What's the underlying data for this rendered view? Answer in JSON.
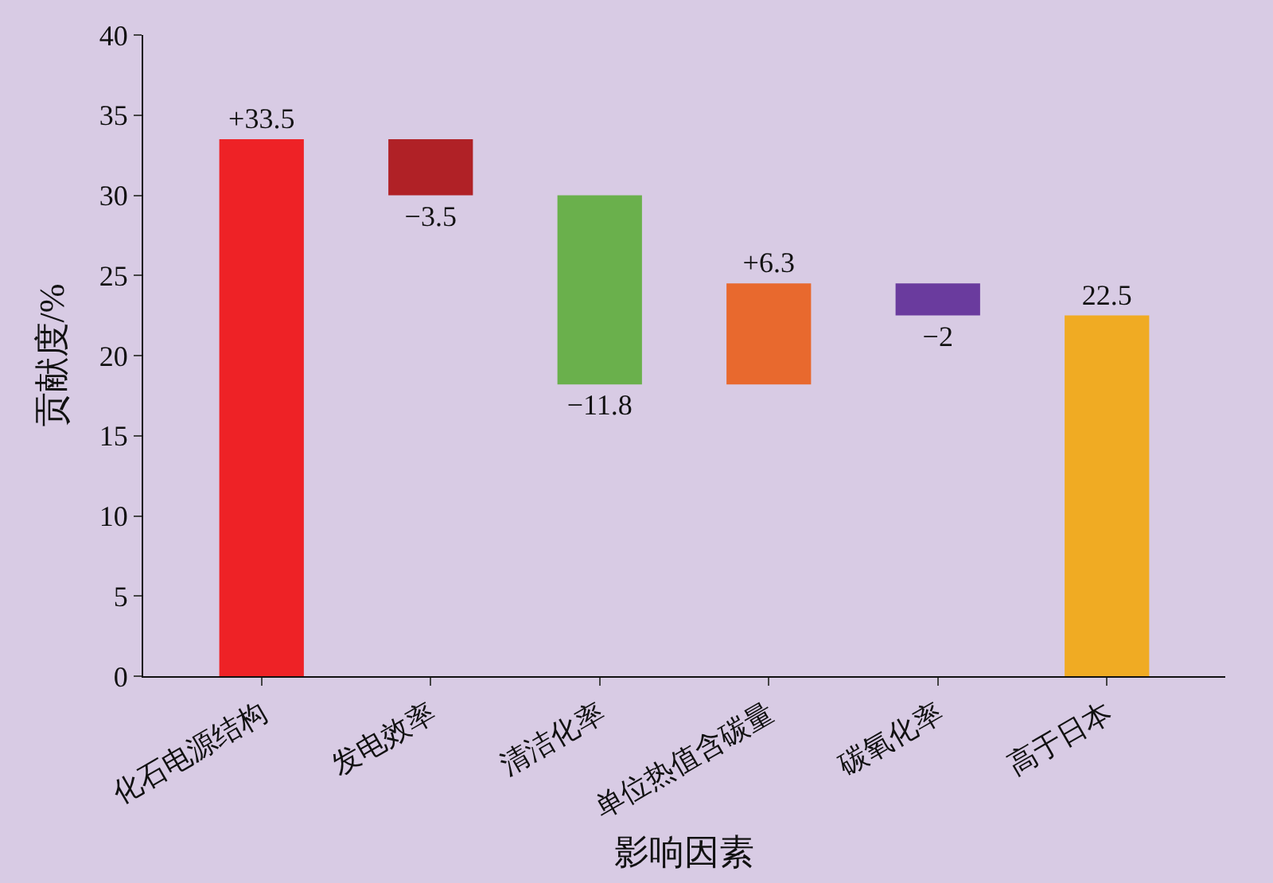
{
  "chart_data": {
    "type": "bar",
    "xlabel": "影响因素",
    "ylabel": "贡献度/%",
    "categories": [
      "化石电源结构",
      "发电效率",
      "清洁化率",
      "单位热值含碳量",
      "碳氧化率",
      "高于日本"
    ],
    "values": [
      33.5,
      -3.5,
      -11.8,
      6.3,
      -2,
      22.5
    ],
    "base": [
      0,
      33.5,
      30,
      18.2,
      24.5,
      0
    ],
    "colors": [
      "#ee2226",
      "#b02126",
      "#6ab04c",
      "#e8692e",
      "#6a3b9e",
      "#f0ab23"
    ],
    "value_labels": [
      "+33.5",
      "−3.5",
      "−11.8",
      "+6.3",
      "−2",
      "22.5"
    ],
    "ylim": [
      0,
      40
    ],
    "yticks": [
      0,
      5,
      10,
      15,
      20,
      25,
      30,
      35,
      40
    ],
    "grid": false,
    "legend": false
  }
}
